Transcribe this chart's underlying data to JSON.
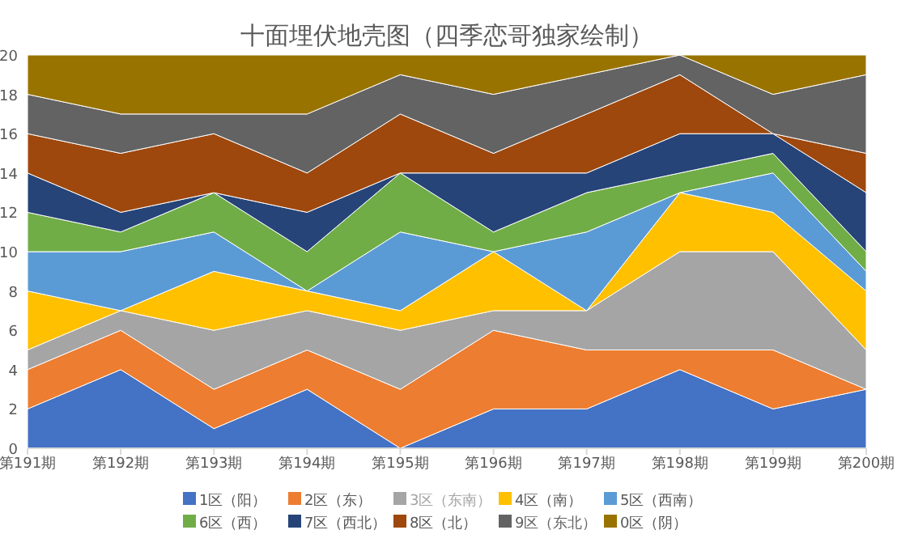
{
  "chart_data": {
    "type": "area",
    "stacked": true,
    "title": "十面埋伏地壳图（四季恋哥独家绘制）",
    "categories": [
      "第191期",
      "第192期",
      "第193期",
      "第194期",
      "第195期",
      "第196期",
      "第197期",
      "第198期",
      "第199期",
      "第200期"
    ],
    "ylim": [
      0,
      20
    ],
    "yticks": [
      0,
      2,
      4,
      6,
      8,
      10,
      12,
      14,
      16,
      18,
      20
    ],
    "legend": "bottom",
    "series": [
      {
        "name": "1区（阳）",
        "color": "#4472c4",
        "values": [
          2,
          4,
          1,
          3,
          0,
          2,
          2,
          4,
          2,
          3
        ]
      },
      {
        "name": "2区（东）",
        "color": "#ed7d31",
        "values": [
          2,
          2,
          2,
          2,
          3,
          4,
          3,
          1,
          3,
          0
        ]
      },
      {
        "name": "3区（东南）",
        "color": "#a5a5a5",
        "values": [
          1,
          1,
          3,
          2,
          3,
          1,
          2,
          5,
          5,
          2
        ]
      },
      {
        "name": "4区（南）",
        "color": "#ffc000",
        "values": [
          3,
          0,
          3,
          1,
          1,
          3,
          0,
          3,
          2,
          3
        ]
      },
      {
        "name": "5区（西南）",
        "color": "#5b9bd5",
        "values": [
          2,
          3,
          2,
          0,
          4,
          0,
          4,
          0,
          2,
          1
        ]
      },
      {
        "name": "6区（西）",
        "color": "#70ad47",
        "values": [
          2,
          1,
          2,
          2,
          3,
          1,
          2,
          1,
          1,
          1
        ]
      },
      {
        "name": "7区（西北）",
        "color": "#264478",
        "values": [
          2,
          1,
          0,
          2,
          0,
          3,
          1,
          2,
          1,
          3
        ]
      },
      {
        "name": "8区（北）",
        "color": "#9e480e",
        "values": [
          2,
          3,
          3,
          2,
          3,
          1,
          3,
          3,
          0,
          2
        ]
      },
      {
        "name": "9区（东北）",
        "color": "#636363",
        "values": [
          2,
          2,
          1,
          3,
          2,
          3,
          2,
          1,
          2,
          4
        ]
      },
      {
        "name": "0区（阴）",
        "color": "#997300",
        "values": [
          2,
          3,
          3,
          3,
          1,
          2,
          1,
          0,
          2,
          1
        ]
      }
    ]
  }
}
